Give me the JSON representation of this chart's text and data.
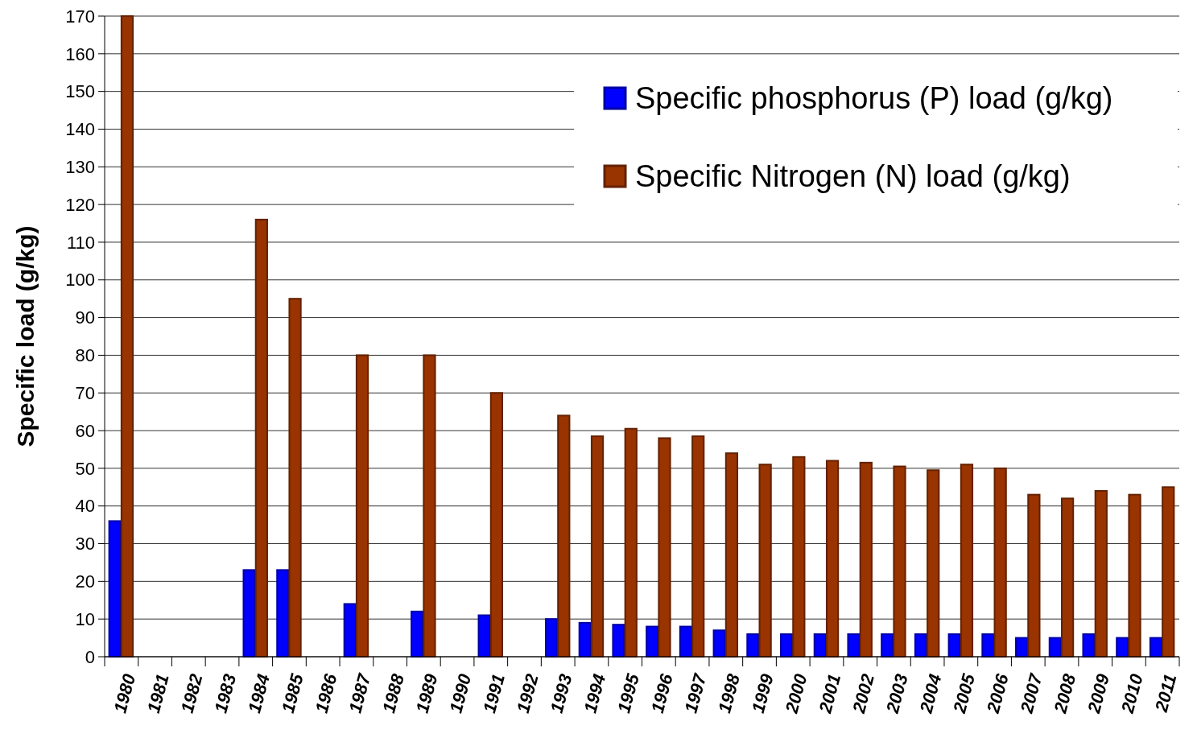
{
  "chart_data": {
    "type": "bar",
    "ylabel": "Specific load (g/kg)",
    "categories": [
      "1980",
      "1981",
      "1982",
      "1983",
      "1984",
      "1985",
      "1986",
      "1987",
      "1988",
      "1989",
      "1990",
      "1991",
      "1992",
      "1993",
      "1994",
      "1995",
      "1996",
      "1997",
      "1998",
      "1999",
      "2000",
      "2001",
      "2002",
      "2003",
      "2004",
      "2005",
      "2006",
      "2007",
      "2008",
      "2009",
      "2010",
      "2011"
    ],
    "series": [
      {
        "name": "Specific phosphorus (P) load (g/kg)",
        "color": "#0000ff",
        "values": [
          36,
          null,
          null,
          null,
          23,
          23,
          null,
          14,
          null,
          12,
          null,
          11,
          null,
          10,
          9,
          8.5,
          8,
          8,
          7,
          6,
          6,
          6,
          6,
          6,
          6,
          6,
          6,
          5,
          5,
          6,
          5,
          5
        ]
      },
      {
        "name": "Specific Nitrogen (N) load (g/kg)",
        "color": "#993300",
        "values": [
          170,
          null,
          null,
          null,
          116,
          95,
          null,
          80,
          null,
          80,
          null,
          70,
          null,
          64,
          58.5,
          60.5,
          58,
          58.5,
          54,
          51,
          53,
          52,
          51.5,
          50.5,
          49.5,
          51,
          50,
          43,
          42,
          44,
          43,
          45
        ]
      }
    ],
    "ylim": [
      0,
      170
    ],
    "yticks": [
      0,
      10,
      20,
      30,
      40,
      50,
      60,
      70,
      80,
      90,
      100,
      110,
      120,
      130,
      140,
      150,
      160,
      170
    ],
    "grid": "y",
    "legend": "top right"
  }
}
